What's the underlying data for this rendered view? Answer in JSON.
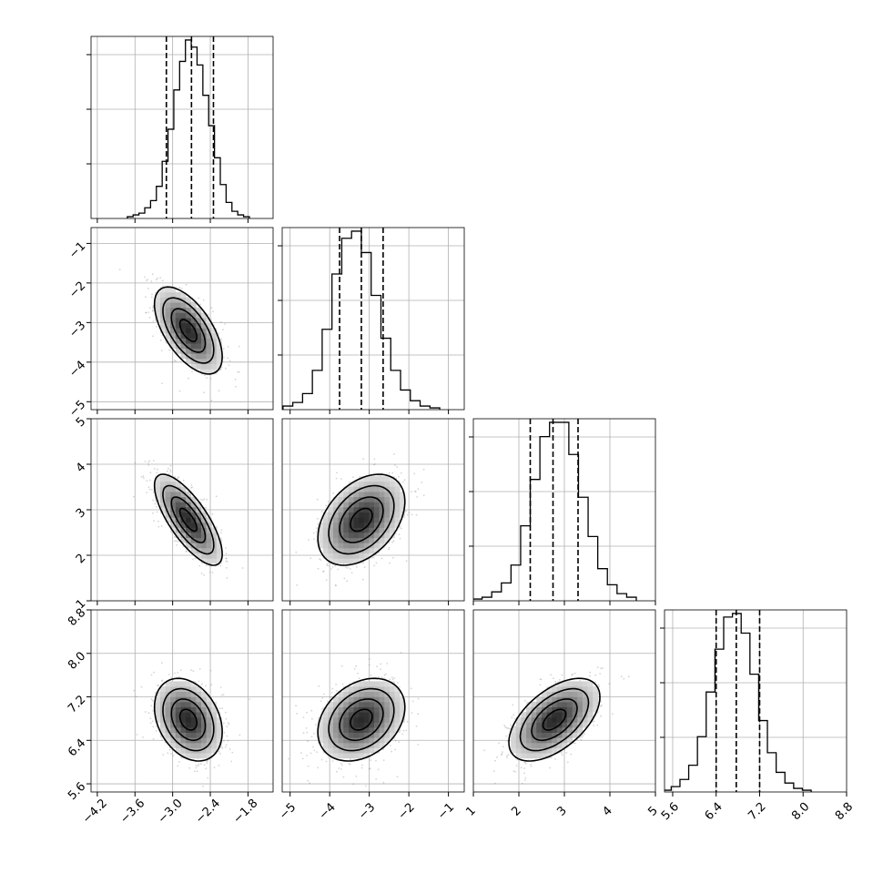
{
  "chart_data": {
    "type": "corner",
    "title": "",
    "params": [
      {
        "range": [
          -4.3,
          -1.4
        ],
        "ticks": [
          -4.2,
          -3.6,
          -3.0,
          -2.4,
          -1.8
        ],
        "tick_labels": [
          "−4.2",
          "−3.6",
          "−3.0",
          "−2.4",
          "−1.8"
        ],
        "quantiles": [
          -3.1,
          -2.7,
          -2.35
        ],
        "mean": -2.75,
        "sd": 0.27
      },
      {
        "range": [
          -5.2,
          -0.6
        ],
        "ticks": [
          -5,
          -4,
          -3,
          -2,
          -1
        ],
        "tick_labels": [
          "−5",
          "−4",
          "−3",
          "−2",
          "−1"
        ],
        "quantiles": [
          -3.75,
          -3.2,
          -2.65
        ],
        "mean": -3.2,
        "sd": 0.55
      },
      {
        "range": [
          1.0,
          5.0
        ],
        "ticks": [
          1,
          2,
          3,
          4,
          5
        ],
        "tick_labels": [
          "1",
          "2",
          "3",
          "4",
          "5"
        ],
        "quantiles": [
          2.25,
          2.75,
          3.3
        ],
        "mean": 2.78,
        "sd": 0.5
      },
      {
        "range": [
          5.45,
          8.8
        ],
        "ticks": [
          5.6,
          6.4,
          7.2,
          8.0,
          8.8
        ],
        "tick_labels": [
          "5.6",
          "6.4",
          "7.2",
          "8.0",
          "8.8"
        ],
        "quantiles": [
          6.4,
          6.77,
          7.2
        ],
        "mean": 6.78,
        "sd": 0.38
      }
    ],
    "correlations": [
      {
        "i": 1,
        "j": 0,
        "rho": -0.6
      },
      {
        "i": 2,
        "j": 0,
        "rho": -0.75
      },
      {
        "i": 2,
        "j": 1,
        "rho": 0.4
      },
      {
        "i": 3,
        "j": 0,
        "rho": -0.3
      },
      {
        "i": 3,
        "j": 1,
        "rho": 0.3
      },
      {
        "i": 3,
        "j": 2,
        "rho": 0.55
      }
    ],
    "histograms": [
      [
        1,
        2,
        3,
        6,
        10,
        18,
        32,
        50,
        72,
        88,
        100,
        96,
        86,
        69,
        52,
        34,
        19,
        9,
        4,
        2,
        1
      ],
      [
        2,
        4,
        9,
        22,
        45,
        76,
        96,
        100,
        88,
        64,
        40,
        22,
        11,
        5,
        2,
        1
      ],
      [
        1,
        2,
        5,
        10,
        20,
        42,
        68,
        92,
        100,
        100,
        82,
        58,
        36,
        18,
        9,
        4,
        2
      ],
      [
        1,
        3,
        7,
        15,
        31,
        56,
        80,
        98,
        100,
        89,
        66,
        40,
        22,
        11,
        5,
        2,
        1
      ]
    ],
    "contour_levels_sigma": [
      0.5,
      1.0,
      1.5,
      2.0
    ],
    "grid": true,
    "histogram_style": "step",
    "quantile_lines": "dashed"
  }
}
